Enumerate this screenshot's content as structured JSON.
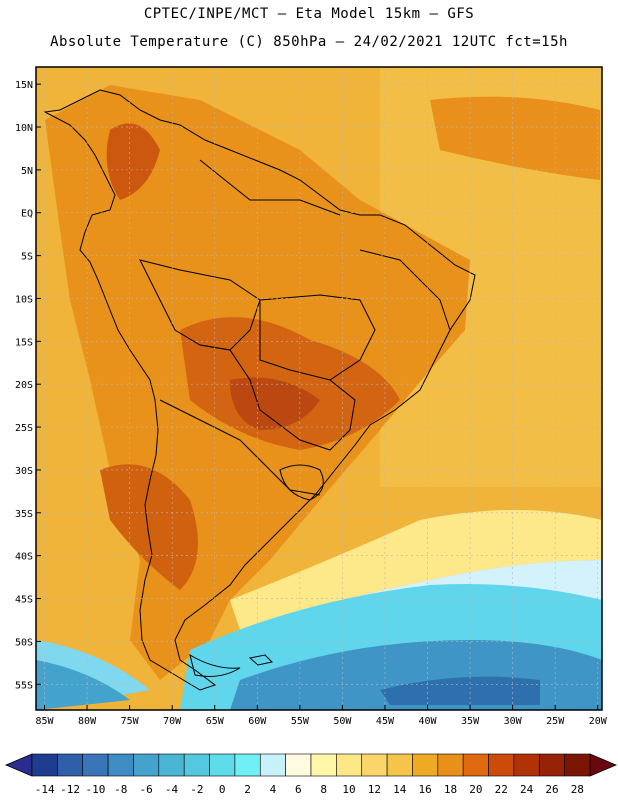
{
  "header": {
    "line1": "CPTEC/INPE/MCT –  Eta Model 15km – GFS",
    "line2": "Absolute Temperature (C) 850hPa – 24/02/2021 12UTC fct=15h"
  },
  "map": {
    "lat_labels": [
      "15N",
      "10N",
      "5N",
      "EQ",
      "5S",
      "10S",
      "15S",
      "20S",
      "25S",
      "30S",
      "35S",
      "40S",
      "45S",
      "50S",
      "55S"
    ],
    "lon_labels": [
      "85W",
      "80W",
      "75W",
      "70W",
      "65W",
      "60W",
      "55W",
      "50W",
      "45W",
      "40W",
      "35W",
      "30W",
      "25W",
      "20W"
    ],
    "lat_values": [
      15,
      10,
      5,
      0,
      -5,
      -10,
      -15,
      -20,
      -25,
      -30,
      -35,
      -40,
      -45,
      -50,
      -55
    ],
    "lon_values": [
      -85,
      -80,
      -75,
      -70,
      -65,
      -60,
      -55,
      -50,
      -45,
      -40,
      -35,
      -30,
      -25,
      -20
    ],
    "extent": {
      "lon_min": -86,
      "lon_max": -19.5,
      "lat_min": -58,
      "lat_max": 17
    }
  },
  "colorbar": {
    "labels": [
      "-14",
      "-12",
      "-10",
      "-8",
      "-6",
      "-4",
      "-2",
      "0",
      "2",
      "4",
      "6",
      "8",
      "10",
      "12",
      "14",
      "16",
      "18",
      "20",
      "22",
      "24",
      "26",
      "28"
    ],
    "colors": [
      "#1e3d8f",
      "#2e5fa8",
      "#3a75b8",
      "#3f8cc4",
      "#44a3cc",
      "#4ab6d4",
      "#54c8de",
      "#5fdcea",
      "#6ef0f5",
      "#c8f2fb",
      "#fffbe0",
      "#fff6a8",
      "#fde888",
      "#fad66a",
      "#f5c44a",
      "#eeaa22",
      "#e8901a",
      "#e06a10",
      "#cc4a0a",
      "#b23208",
      "#962208",
      "#7a1606"
    ],
    "arrow_low": "#2a2c8f",
    "arrow_high": "#6a0810"
  }
}
